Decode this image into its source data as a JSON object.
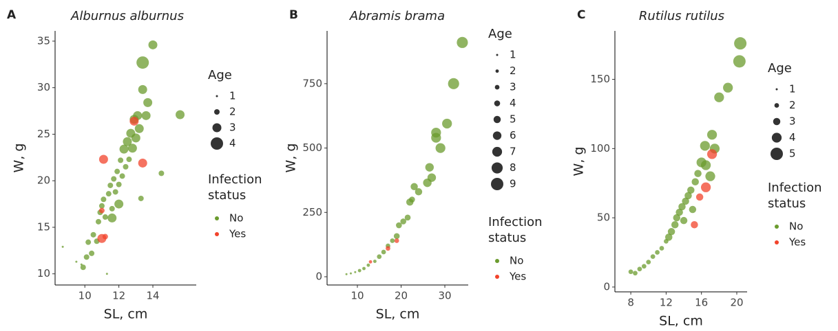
{
  "chart_data": [
    {
      "type": "scatter",
      "panel_label": "A",
      "title": "Alburnus alburnus",
      "x_label": "SL, cm",
      "y_label": "W, g",
      "xlim": [
        8.25,
        16.55
      ],
      "ylim": [
        8.8,
        36.1
      ],
      "xticks": [
        10,
        12,
        14
      ],
      "yticks": [
        10,
        15,
        20,
        25,
        30,
        35
      ],
      "size_legend_title": "Age",
      "size_levels": [
        1,
        2,
        3,
        4
      ],
      "color_legend_title": "Infection status",
      "series": [
        {
          "name": "No",
          "color": "#6b9b2e",
          "x": [
            8.7,
            9.5,
            9.8,
            9.9,
            10.1,
            10.2,
            10.4,
            10.5,
            10.7,
            10.8,
            10.9,
            11.0,
            11.1,
            11.2,
            11.3,
            11.4,
            11.5,
            11.6,
            11.7,
            11.8,
            11.9,
            12.0,
            12.1,
            12.2,
            12.3,
            12.4,
            12.5,
            12.6,
            12.7,
            12.8,
            12.9,
            13.0,
            13.1,
            13.2,
            13.3,
            13.4,
            13.4,
            13.6,
            13.7,
            14.0,
            14.5,
            15.6,
            11.6,
            12.0
          ],
          "values": [
            12.9,
            11.3,
            11.0,
            10.7,
            11.8,
            13.4,
            12.2,
            14.2,
            13.5,
            15.6,
            16.6,
            17.3,
            18.0,
            16.1,
            10.0,
            18.6,
            19.5,
            17.0,
            20.2,
            18.8,
            21.0,
            19.6,
            22.2,
            20.5,
            23.4,
            21.5,
            24.2,
            22.3,
            25.1,
            23.5,
            26.6,
            24.6,
            27.0,
            25.6,
            18.1,
            29.8,
            32.7,
            27.0,
            28.4,
            34.6,
            20.8,
            27.1,
            16.0,
            17.5
          ],
          "sizes": [
            1,
            1,
            1,
            2,
            2,
            2,
            2,
            2,
            2,
            2,
            2,
            2,
            2,
            2,
            1,
            2,
            2,
            2,
            2,
            2,
            2,
            2,
            2,
            2,
            3,
            2,
            3,
            2,
            3,
            3,
            3,
            3,
            3,
            3,
            2,
            3,
            4,
            3,
            3,
            3,
            2,
            3,
            3,
            3
          ]
        },
        {
          "name": "Yes",
          "color": "#f2432b",
          "x": [
            11.0,
            11.2,
            11.1,
            12.9,
            13.4,
            11.0
          ],
          "values": [
            13.8,
            14.0,
            22.3,
            26.4,
            21.9,
            16.8
          ],
          "sizes": [
            3,
            2,
            3,
            3,
            3,
            2
          ]
        }
      ]
    },
    {
      "type": "scatter",
      "panel_label": "B",
      "title": "Abramis brama",
      "x_label": "SL, cm",
      "y_label": "W, g",
      "xlim": [
        3.07,
        35.35
      ],
      "ylim": [
        -32,
        955
      ],
      "xticks": [
        10,
        20,
        30
      ],
      "yticks": [
        0,
        250,
        500,
        750
      ],
      "size_legend_title": "Age",
      "size_levels": [
        1,
        2,
        3,
        4,
        5,
        6,
        7,
        8,
        9
      ],
      "color_legend_title": "Infection status",
      "series": [
        {
          "name": "No",
          "color": "#6b9b2e",
          "x": [
            7.5,
            8.5,
            9.5,
            10.5,
            11.5,
            12.5,
            14,
            15,
            16,
            17,
            18,
            19,
            19.5,
            20.5,
            21.5,
            22,
            22.5,
            23,
            24,
            26,
            26.5,
            27,
            28,
            28,
            29,
            30.5,
            32,
            34
          ],
          "values": [
            10,
            13,
            18,
            24,
            32,
            45,
            60,
            78,
            96,
            120,
            140,
            158,
            200,
            215,
            230,
            290,
            300,
            350,
            330,
            365,
            425,
            385,
            540,
            560,
            500,
            595,
            750,
            910
          ],
          "sizes": [
            1,
            1,
            1,
            2,
            2,
            2,
            2,
            3,
            3,
            3,
            3,
            4,
            4,
            4,
            4,
            5,
            4,
            5,
            5,
            6,
            6,
            6,
            7,
            7,
            7,
            7,
            8,
            8
          ]
        },
        {
          "name": "Yes",
          "color": "#f2432b",
          "x": [
            13,
            17,
            19
          ],
          "values": [
            58,
            110,
            140
          ],
          "sizes": [
            2,
            3,
            3
          ]
        }
      ]
    },
    {
      "type": "scatter",
      "panel_label": "C",
      "title": "Rutilus rutilus",
      "x_label": "SL, cm",
      "y_label": "W, g",
      "xlim": [
        6.2,
        21.17
      ],
      "ylim": [
        -3.5,
        185
      ],
      "xticks": [
        8,
        12,
        16,
        20
      ],
      "yticks": [
        0,
        50,
        100,
        150
      ],
      "size_legend_title": "Age",
      "size_levels": [
        1,
        2,
        3,
        4,
        5
      ],
      "color_legend_title": "Infection status",
      "series": [
        {
          "name": "No",
          "color": "#6b9b2e",
          "x": [
            8,
            8.5,
            9,
            9.5,
            10,
            10.5,
            11,
            11.5,
            12,
            12.3,
            12.6,
            13,
            13.2,
            13.5,
            13.8,
            14,
            14.2,
            14.5,
            14.8,
            15,
            15.3,
            15.6,
            16,
            16.5,
            17,
            17.2,
            17.5,
            18,
            19,
            20.3,
            20.4,
            16.4
          ],
          "values": [
            11,
            10,
            13,
            15,
            18,
            22,
            25,
            28,
            33,
            36,
            40,
            45,
            50,
            54,
            58,
            48,
            62,
            66,
            70,
            56,
            76,
            82,
            90,
            88,
            80,
            110,
            100,
            137,
            144,
            163,
            176,
            102
          ],
          "sizes": [
            2,
            2,
            2,
            2,
            2,
            2,
            2,
            2,
            2,
            3,
            3,
            3,
            3,
            3,
            3,
            3,
            3,
            3,
            3,
            3,
            3,
            3,
            4,
            4,
            4,
            4,
            4,
            4,
            4,
            5,
            5,
            4
          ]
        },
        {
          "name": "Yes",
          "color": "#f2432b",
          "x": [
            15.8,
            16.5,
            17.2,
            15.2
          ],
          "values": [
            65,
            72,
            96,
            45
          ],
          "sizes": [
            3,
            4,
            4,
            3
          ]
        }
      ]
    }
  ]
}
